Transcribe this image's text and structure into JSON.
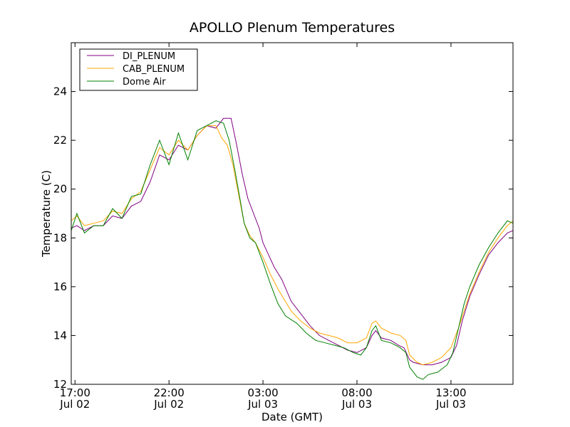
{
  "chart_data": {
    "type": "line",
    "title": "APOLLO Plenum Temperatures",
    "xlabel": "Date (GMT)",
    "ylabel": "Temperature (C)",
    "xlim": [
      16.8,
      40.3
    ],
    "ylim": [
      12,
      26
    ],
    "yticks": [
      12,
      14,
      16,
      18,
      20,
      22,
      24
    ],
    "xticks": [
      {
        "x": 17,
        "time": "17:00",
        "date": "Jul 02"
      },
      {
        "x": 22,
        "time": "22:00",
        "date": "Jul 02"
      },
      {
        "x": 27,
        "time": "03:00",
        "date": "Jul 03"
      },
      {
        "x": 32,
        "time": "08:00",
        "date": "Jul 03"
      },
      {
        "x": 37,
        "time": "13:00",
        "date": "Jul 03"
      }
    ],
    "legend_position": "top-left",
    "series": [
      {
        "name": "DI_PLENUM",
        "color": "#800080",
        "points": [
          [
            16.8,
            18.4
          ],
          [
            17.1,
            18.5
          ],
          [
            17.5,
            18.3
          ],
          [
            18.0,
            18.5
          ],
          [
            18.5,
            18.5
          ],
          [
            19.0,
            18.9
          ],
          [
            19.5,
            18.8
          ],
          [
            20.0,
            19.3
          ],
          [
            20.5,
            19.5
          ],
          [
            21.0,
            20.3
          ],
          [
            21.5,
            21.4
          ],
          [
            22.0,
            21.2
          ],
          [
            22.5,
            21.8
          ],
          [
            23.0,
            21.6
          ],
          [
            23.5,
            22.2
          ],
          [
            24.0,
            22.6
          ],
          [
            24.5,
            22.5
          ],
          [
            24.9,
            22.9
          ],
          [
            25.3,
            22.9
          ],
          [
            25.6,
            21.8
          ],
          [
            25.9,
            20.6
          ],
          [
            26.2,
            19.6
          ],
          [
            26.5,
            19.0
          ],
          [
            26.8,
            18.4
          ],
          [
            27.0,
            17.8
          ],
          [
            27.3,
            17.3
          ],
          [
            27.6,
            16.8
          ],
          [
            28.0,
            16.3
          ],
          [
            28.5,
            15.4
          ],
          [
            29.0,
            14.9
          ],
          [
            29.5,
            14.4
          ],
          [
            30.0,
            14.0
          ],
          [
            30.5,
            13.8
          ],
          [
            31.0,
            13.6
          ],
          [
            31.5,
            13.4
          ],
          [
            32.0,
            13.3
          ],
          [
            32.5,
            13.5
          ],
          [
            32.8,
            14.0
          ],
          [
            33.0,
            14.2
          ],
          [
            33.3,
            13.9
          ],
          [
            33.8,
            13.8
          ],
          [
            34.2,
            13.6
          ],
          [
            34.5,
            13.5
          ],
          [
            34.8,
            13.0
          ],
          [
            35.0,
            12.9
          ],
          [
            35.5,
            12.8
          ],
          [
            36.0,
            12.8
          ],
          [
            36.5,
            12.9
          ],
          [
            37.0,
            13.1
          ],
          [
            37.3,
            13.6
          ],
          [
            37.6,
            14.6
          ],
          [
            38.0,
            15.6
          ],
          [
            38.5,
            16.5
          ],
          [
            39.0,
            17.3
          ],
          [
            39.5,
            17.8
          ],
          [
            40.0,
            18.2
          ],
          [
            40.3,
            18.3
          ]
        ]
      },
      {
        "name": "CAB_PLENUM",
        "color": "#ffa500",
        "points": [
          [
            16.8,
            18.7
          ],
          [
            17.1,
            18.9
          ],
          [
            17.5,
            18.5
          ],
          [
            18.0,
            18.6
          ],
          [
            18.5,
            18.7
          ],
          [
            19.0,
            19.1
          ],
          [
            19.5,
            19.0
          ],
          [
            20.0,
            19.6
          ],
          [
            20.5,
            19.9
          ],
          [
            21.0,
            20.8
          ],
          [
            21.5,
            21.7
          ],
          [
            22.0,
            21.4
          ],
          [
            22.5,
            22.0
          ],
          [
            23.0,
            21.6
          ],
          [
            23.5,
            22.2
          ],
          [
            24.0,
            22.6
          ],
          [
            24.5,
            22.6
          ],
          [
            24.8,
            22.1
          ],
          [
            25.1,
            21.8
          ],
          [
            25.4,
            21.0
          ],
          [
            25.7,
            19.8
          ],
          [
            26.0,
            18.6
          ],
          [
            26.3,
            18.1
          ],
          [
            26.6,
            17.8
          ],
          [
            27.0,
            17.2
          ],
          [
            27.4,
            16.5
          ],
          [
            27.8,
            15.9
          ],
          [
            28.5,
            15.0
          ],
          [
            29.0,
            14.6
          ],
          [
            29.5,
            14.3
          ],
          [
            30.0,
            14.1
          ],
          [
            30.5,
            14.0
          ],
          [
            31.0,
            13.9
          ],
          [
            31.5,
            13.7
          ],
          [
            32.0,
            13.7
          ],
          [
            32.5,
            13.9
          ],
          [
            32.8,
            14.5
          ],
          [
            33.0,
            14.6
          ],
          [
            33.3,
            14.3
          ],
          [
            33.8,
            14.1
          ],
          [
            34.3,
            14.0
          ],
          [
            34.6,
            13.8
          ],
          [
            34.8,
            13.2
          ],
          [
            35.2,
            12.9
          ],
          [
            35.5,
            12.8
          ],
          [
            36.0,
            12.9
          ],
          [
            36.5,
            13.1
          ],
          [
            37.0,
            13.5
          ],
          [
            37.4,
            14.3
          ],
          [
            37.7,
            15.0
          ],
          [
            38.0,
            15.7
          ],
          [
            38.5,
            16.6
          ],
          [
            39.0,
            17.4
          ],
          [
            39.5,
            18.0
          ],
          [
            40.0,
            18.5
          ],
          [
            40.3,
            18.7
          ]
        ]
      },
      {
        "name": "Dome Air",
        "color": "#008000",
        "points": [
          [
            16.8,
            18.3
          ],
          [
            17.1,
            19.0
          ],
          [
            17.5,
            18.2
          ],
          [
            18.0,
            18.5
          ],
          [
            18.5,
            18.5
          ],
          [
            19.0,
            19.2
          ],
          [
            19.5,
            18.8
          ],
          [
            20.0,
            19.7
          ],
          [
            20.5,
            19.8
          ],
          [
            21.0,
            21.0
          ],
          [
            21.5,
            22.0
          ],
          [
            22.0,
            21.0
          ],
          [
            22.5,
            22.3
          ],
          [
            23.0,
            21.2
          ],
          [
            23.5,
            22.4
          ],
          [
            24.0,
            22.6
          ],
          [
            24.5,
            22.8
          ],
          [
            24.9,
            22.7
          ],
          [
            25.2,
            22.0
          ],
          [
            25.5,
            20.8
          ],
          [
            25.8,
            19.5
          ],
          [
            26.0,
            18.6
          ],
          [
            26.3,
            18.0
          ],
          [
            26.6,
            17.8
          ],
          [
            27.0,
            17.0
          ],
          [
            27.4,
            16.1
          ],
          [
            27.8,
            15.3
          ],
          [
            28.2,
            14.8
          ],
          [
            28.8,
            14.5
          ],
          [
            29.3,
            14.1
          ],
          [
            29.8,
            13.8
          ],
          [
            30.3,
            13.7
          ],
          [
            30.8,
            13.6
          ],
          [
            31.3,
            13.5
          ],
          [
            31.8,
            13.3
          ],
          [
            32.2,
            13.2
          ],
          [
            32.5,
            13.5
          ],
          [
            32.8,
            14.2
          ],
          [
            33.0,
            14.4
          ],
          [
            33.3,
            13.8
          ],
          [
            33.8,
            13.7
          ],
          [
            34.3,
            13.5
          ],
          [
            34.6,
            13.3
          ],
          [
            34.8,
            12.7
          ],
          [
            35.2,
            12.3
          ],
          [
            35.5,
            12.2
          ],
          [
            35.8,
            12.4
          ],
          [
            36.3,
            12.5
          ],
          [
            36.8,
            12.8
          ],
          [
            37.1,
            13.3
          ],
          [
            37.4,
            14.3
          ],
          [
            37.7,
            15.3
          ],
          [
            38.0,
            16.0
          ],
          [
            38.5,
            16.9
          ],
          [
            39.0,
            17.6
          ],
          [
            39.5,
            18.2
          ],
          [
            40.0,
            18.7
          ],
          [
            40.3,
            18.6
          ]
        ]
      }
    ]
  }
}
